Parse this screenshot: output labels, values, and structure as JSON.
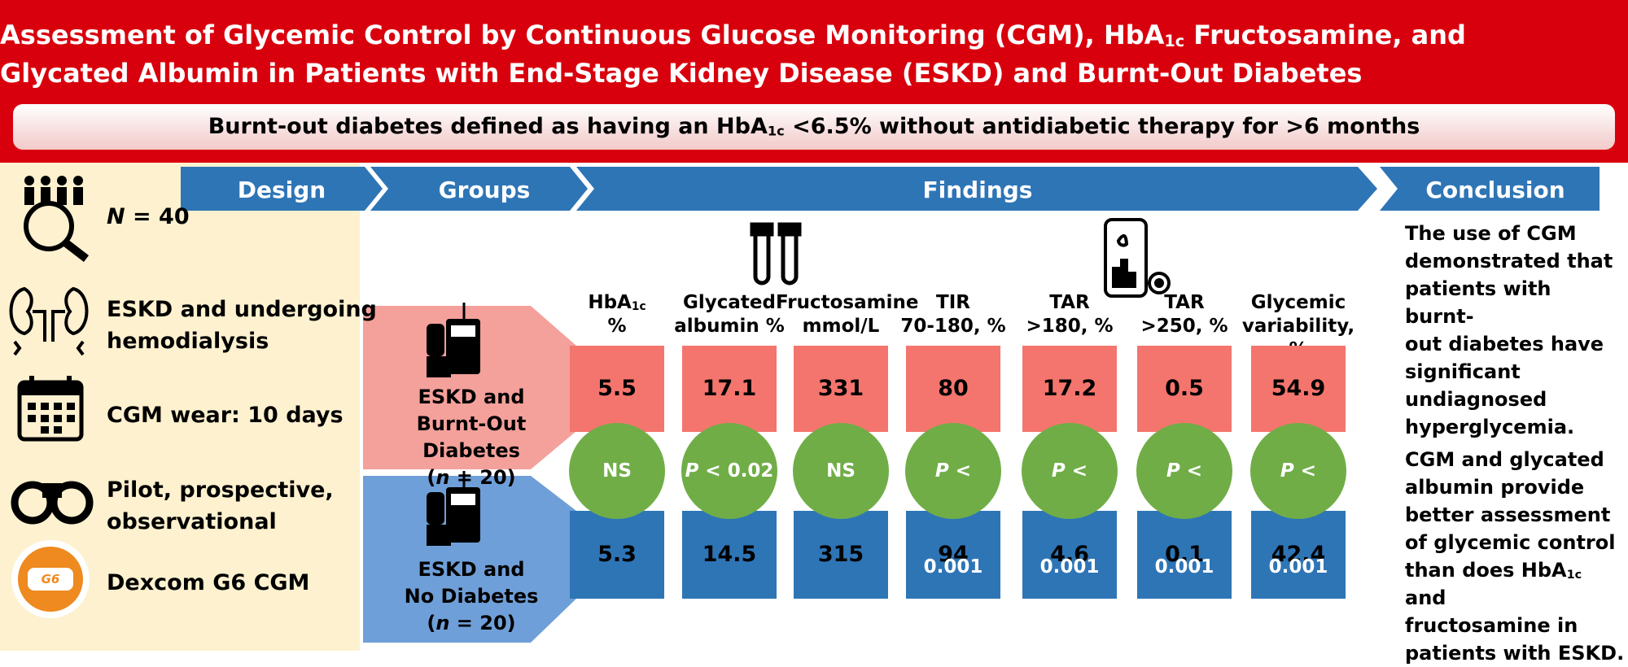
{
  "header": {
    "title": [
      [
        "Assessment of Glycemic Control by Continuous Glucose Monitoring (CGM), HbA",
        {
          "sub": "1c"
        },
        " Fructosamine, and"
      ],
      [
        "Glycated Albumin in Patients with End-Stage Kidney Disease (ESKD) and Burnt-Out Diabetes"
      ]
    ],
    "subtitle": [
      [
        "Burnt-out diabetes defined as having an HbA",
        {
          "sub": "1c"
        },
        " <6.5% without antidiabetic therapy for >6 months"
      ]
    ]
  },
  "sections": [
    "Design",
    "Groups",
    "Findings",
    "Conclusion"
  ],
  "design": [
    [
      [
        {
          "italic": "N"
        },
        " = 40"
      ]
    ],
    [
      [
        "ESKD and undergoing"
      ],
      [
        "hemodialysis"
      ]
    ],
    [
      [
        "CGM wear: 10 days"
      ]
    ],
    [
      [
        "Pilot, prospective,"
      ],
      [
        "observational"
      ]
    ],
    [
      [
        "Dexcom G6 CGM"
      ]
    ]
  ],
  "design_logo": "G6",
  "groups": [
    [
      [
        "ESKD and"
      ],
      [
        "Burnt-Out  Diabetes"
      ],
      [
        "(",
        {
          "italic": "n"
        },
        " = 20)"
      ]
    ],
    [
      [
        "ESKD and"
      ],
      [
        "No Diabetes"
      ],
      [
        "(",
        {
          "italic": "n"
        },
        " = 20)"
      ]
    ]
  ],
  "findings": {
    "columns": [
      [
        [
          "HbA",
          {
            "sub": "1c"
          }
        ],
        [
          "%"
        ]
      ],
      [
        [
          "Glycated"
        ],
        [
          "albumin %"
        ]
      ],
      [
        [
          "Fructosamine"
        ],
        [
          "mmol/L"
        ]
      ],
      [
        [
          "TIR"
        ],
        [
          "70-180, %"
        ]
      ],
      [
        [
          "TAR"
        ],
        [
          ">180, %"
        ]
      ],
      [
        [
          "TAR"
        ],
        [
          ">250, %"
        ]
      ],
      [
        [
          "Glycemic"
        ],
        [
          "variability, %"
        ]
      ]
    ],
    "burnt_out": [
      5.5,
      17.1,
      331,
      80,
      17.2,
      0.5,
      54.9
    ],
    "comparison": [
      [
        "NS"
      ],
      [
        {
          "italic": "P"
        },
        " < 0.02"
      ],
      [
        "NS"
      ],
      [
        {
          "italic": "P"
        },
        " < 0.001"
      ],
      [
        {
          "italic": "P"
        },
        " < 0.001"
      ],
      [
        {
          "italic": "P"
        },
        " < 0.001"
      ],
      [
        {
          "italic": "P"
        },
        " < 0.001"
      ]
    ],
    "no_diabetes": [
      5.3,
      14.5,
      315,
      94,
      4.6,
      0.1,
      42.4
    ]
  },
  "conclusion": [
    [
      [
        "The use of CGM"
      ],
      [
        "demonstrated that"
      ],
      [
        "patients with burnt-"
      ],
      [
        "out diabetes have"
      ],
      [
        "significant"
      ],
      [
        "undiagnosed"
      ],
      [
        "hyperglycemia."
      ]
    ],
    [
      [
        "CGM and glycated"
      ],
      [
        "albumin provide"
      ],
      [
        "better assessment"
      ],
      [
        "of glycemic control"
      ],
      [
        "than does HbA",
        {
          "sub": "1c"
        },
        " and"
      ],
      [
        "fructosamine in"
      ],
      [
        "patients with ESKD."
      ]
    ]
  ]
}
